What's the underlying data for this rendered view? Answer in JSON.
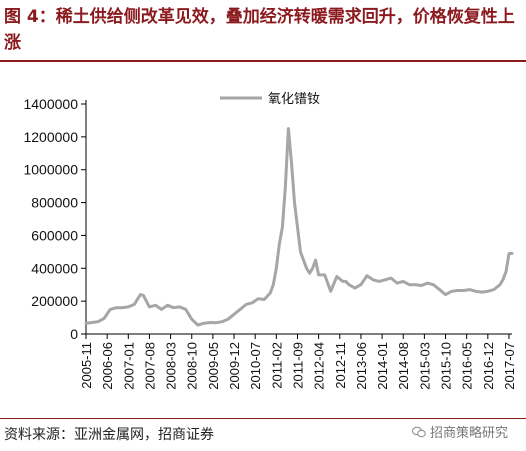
{
  "header": {
    "title": "图 4：稀土供给侧改革见效，叠加经济转暖需求回升，价格恢复性上涨"
  },
  "footer": {
    "source": "资料来源：亚洲金属网，招商证券",
    "watermark": "招商策略研究"
  },
  "chart_data": {
    "type": "line",
    "series": [
      {
        "name": "氧化镨钕",
        "color": "#a6a6a6",
        "x": [
          "2005-11",
          "2006-01",
          "2006-03",
          "2006-05",
          "2006-07",
          "2006-09",
          "2006-11",
          "2007-01",
          "2007-03",
          "2007-05",
          "2007-06",
          "2007-08",
          "2007-10",
          "2007-12",
          "2008-02",
          "2008-04",
          "2008-06",
          "2008-08",
          "2008-10",
          "2008-12",
          "2009-02",
          "2009-04",
          "2009-06",
          "2009-08",
          "2009-10",
          "2009-12",
          "2010-02",
          "2010-04",
          "2010-06",
          "2010-08",
          "2010-10",
          "2010-12",
          "2011-01",
          "2011-02",
          "2011-03",
          "2011-04",
          "2011-05",
          "2011-06",
          "2011-07",
          "2011-08",
          "2011-09",
          "2011-10",
          "2011-11",
          "2011-12",
          "2012-01",
          "2012-02",
          "2012-03",
          "2012-04",
          "2012-06",
          "2012-08",
          "2012-10",
          "2012-12",
          "2013-01",
          "2013-02",
          "2013-04",
          "2013-06",
          "2013-08",
          "2013-10",
          "2013-12",
          "2014-02",
          "2014-04",
          "2014-06",
          "2014-08",
          "2014-10",
          "2014-12",
          "2015-02",
          "2015-04",
          "2015-06",
          "2015-08",
          "2015-10",
          "2015-12",
          "2016-02",
          "2016-04",
          "2016-06",
          "2016-08",
          "2016-10",
          "2016-12",
          "2017-02",
          "2017-04",
          "2017-05",
          "2017-06",
          "2017-07",
          "2017-08"
        ],
        "values": [
          65000,
          70000,
          75000,
          95000,
          150000,
          160000,
          160000,
          165000,
          180000,
          240000,
          235000,
          165000,
          175000,
          150000,
          175000,
          160000,
          165000,
          150000,
          90000,
          55000,
          65000,
          70000,
          68000,
          75000,
          90000,
          120000,
          150000,
          180000,
          190000,
          215000,
          210000,
          250000,
          300000,
          400000,
          550000,
          650000,
          900000,
          1250000,
          1050000,
          800000,
          650000,
          500000,
          450000,
          400000,
          370000,
          400000,
          450000,
          360000,
          360000,
          260000,
          350000,
          320000,
          320000,
          300000,
          280000,
          300000,
          355000,
          330000,
          320000,
          330000,
          340000,
          310000,
          320000,
          300000,
          300000,
          295000,
          310000,
          300000,
          270000,
          240000,
          260000,
          265000,
          265000,
          270000,
          260000,
          255000,
          260000,
          270000,
          300000,
          330000,
          380000,
          490000,
          490000
        ]
      }
    ],
    "x_ticks": [
      "2005-11",
      "2006-06",
      "2007-01",
      "2007-08",
      "2008-03",
      "2008-10",
      "2009-05",
      "2009-12",
      "2010-07",
      "2011-02",
      "2011-09",
      "2012-04",
      "2012-11",
      "2013-06",
      "2014-01",
      "2014-08",
      "2015-03",
      "2015-10",
      "2016-05",
      "2016-12",
      "2017-07"
    ],
    "y_ticks": [
      0,
      200000,
      400000,
      600000,
      800000,
      1000000,
      1200000,
      1400000
    ],
    "ylim": [
      0,
      1400000
    ],
    "xlim": [
      "2005-11",
      "2017-08"
    ],
    "legend_position": "top-center",
    "grid": false
  }
}
